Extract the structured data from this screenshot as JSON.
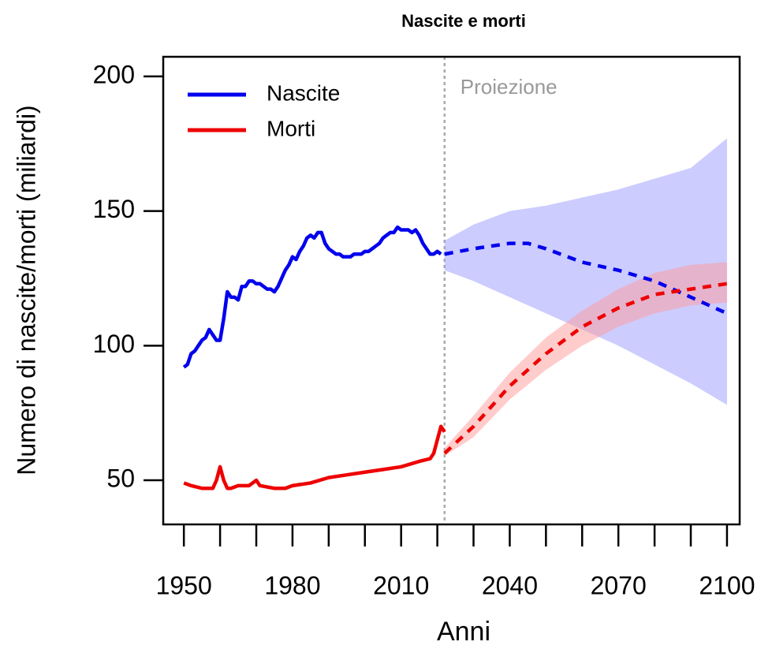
{
  "chart_data": {
    "type": "line",
    "title": "Nascite e morti",
    "x_label": "Anni",
    "y_label": "Numero di nascite/morti (miliardi)",
    "annotation": "Proiezione",
    "projection_start": 2022,
    "xlim": [
      1944.3,
      2103.5
    ],
    "ylim": [
      33.6,
      207.3
    ],
    "xticks": [
      1950,
      1980,
      2010,
      2040,
      2070,
      2100
    ],
    "xminor_ticks": [
      1950,
      1960,
      1970,
      1980,
      1990,
      2000,
      2010,
      2020,
      2030,
      2040,
      2050,
      2060,
      2070,
      2080,
      2090,
      2100
    ],
    "yticks": [
      50,
      100,
      150,
      200
    ],
    "legend": "top-left",
    "series": [
      {
        "name": "Nascite",
        "color": "#0000ee",
        "band_color": "#9999ff",
        "x": [
          1950,
          1951,
          1952,
          1953,
          1954,
          1955,
          1956,
          1957,
          1958,
          1959,
          1960,
          1961,
          1962,
          1963,
          1964,
          1965,
          1966,
          1967,
          1968,
          1969,
          1970,
          1971,
          1972,
          1973,
          1974,
          1975,
          1976,
          1977,
          1978,
          1979,
          1980,
          1981,
          1982,
          1983,
          1984,
          1985,
          1986,
          1987,
          1988,
          1989,
          1990,
          1991,
          1992,
          1993,
          1994,
          1995,
          1996,
          1997,
          1998,
          1999,
          2000,
          2001,
          2002,
          2003,
          2004,
          2005,
          2006,
          2007,
          2008,
          2009,
          2010,
          2011,
          2012,
          2013,
          2014,
          2015,
          2016,
          2017,
          2018,
          2019,
          2020,
          2021
        ],
        "values": [
          92,
          93,
          97,
          98,
          100,
          102,
          103,
          106,
          104,
          102,
          102,
          110,
          120,
          118,
          118,
          117,
          122,
          122,
          124,
          124,
          123,
          123,
          122,
          121,
          121,
          120,
          122,
          125,
          128,
          130,
          133,
          132,
          135,
          137,
          140,
          141,
          140,
          142,
          142,
          138,
          136,
          135,
          134,
          134,
          133,
          133,
          133,
          134,
          134,
          134,
          135,
          135,
          136,
          137,
          138,
          140,
          141,
          142,
          142,
          144,
          143,
          143,
          143,
          142,
          143,
          141,
          138,
          136,
          134,
          134,
          135,
          134
        ],
        "projection": {
          "x": [
            2022,
            2030,
            2040,
            2045,
            2050,
            2060,
            2070,
            2080,
            2090,
            2100
          ],
          "values": [
            134,
            136,
            138,
            138,
            136,
            131,
            128,
            124,
            118,
            112
          ],
          "lower": [
            128,
            124,
            118,
            115,
            112,
            106,
            100,
            93,
            86,
            78
          ],
          "upper": [
            139,
            145,
            150,
            151,
            152,
            155,
            158,
            162,
            166,
            177
          ]
        }
      },
      {
        "name": "Morti",
        "color": "#ee0000",
        "band_color": "#ff9999",
        "x": [
          1950,
          1952,
          1955,
          1958,
          1959,
          1960,
          1961,
          1962,
          1963,
          1965,
          1968,
          1970,
          1971,
          1975,
          1978,
          1980,
          1985,
          1990,
          1995,
          2000,
          2005,
          2010,
          2015,
          2018,
          2019,
          2020,
          2021,
          2022
        ],
        "values": [
          49,
          48,
          47,
          47,
          50,
          55,
          50,
          47,
          47,
          48,
          48,
          50,
          48,
          47,
          47,
          48,
          49,
          51,
          52,
          53,
          54,
          55,
          57,
          58,
          60,
          65,
          70,
          68
        ],
        "projection": {
          "x": [
            2022,
            2030,
            2040,
            2050,
            2060,
            2070,
            2080,
            2090,
            2100
          ],
          "values": [
            60,
            70,
            85,
            97,
            107,
            114,
            119,
            121,
            123
          ],
          "lower": [
            59,
            66,
            80,
            91,
            100,
            107,
            112,
            115,
            116
          ],
          "upper": [
            62,
            74,
            90,
            103,
            113,
            121,
            127,
            130,
            131
          ]
        }
      }
    ]
  }
}
